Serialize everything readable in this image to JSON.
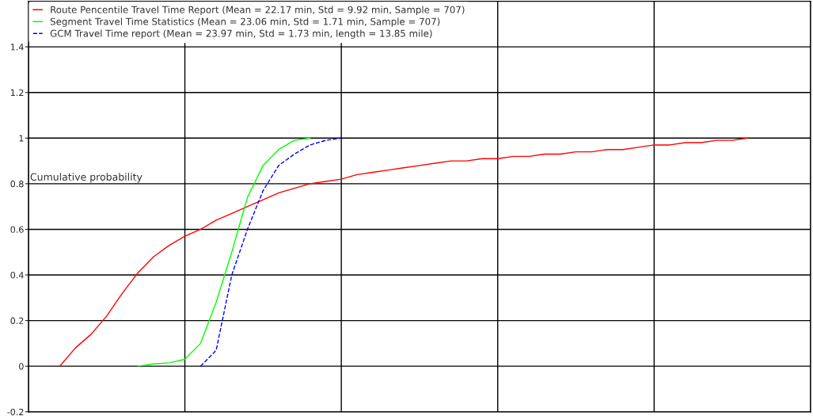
{
  "chart_data": {
    "type": "line",
    "ylabel": "Cumulative probability",
    "categories": [
      null,
      null,
      null,
      null,
      null,
      null,
      null,
      null,
      null,
      null,
      null,
      null,
      null,
      null,
      null,
      null,
      null,
      null,
      null,
      null,
      null,
      null,
      null,
      null,
      null,
      null,
      null,
      null,
      null,
      null,
      null,
      null,
      null,
      null,
      null,
      null,
      null,
      null,
      null,
      null,
      null,
      null,
      null,
      null,
      null,
      null,
      null,
      null,
      null,
      null,
      null
    ],
    "series": [
      {
        "name": "Route Pencentile Travel Time Report (Mean = 22.17 min, Std = 9.92 min, Sample = 707)",
        "color": "#ff0000",
        "line_style": "solid",
        "values": [
          null,
          null,
          0,
          0.08,
          0.14,
          0.22,
          0.32,
          0.41,
          0.48,
          0.53,
          0.57,
          0.6,
          0.64,
          0.67,
          0.7,
          0.73,
          0.76,
          0.78,
          0.8,
          0.81,
          0.82,
          0.84,
          0.85,
          0.86,
          0.87,
          0.88,
          0.89,
          0.9,
          0.9,
          0.91,
          0.91,
          0.92,
          0.92,
          0.93,
          0.93,
          0.94,
          0.94,
          0.95,
          0.95,
          0.96,
          0.97,
          0.97,
          0.98,
          0.98,
          0.99,
          0.99,
          1.0,
          null,
          null,
          null,
          null
        ]
      },
      {
        "name": "Segment Travel Time Statistics (Mean = 23.06 min, Std = 1.71 min, Sample = 707)",
        "color": "#00ff00",
        "line_style": "solid",
        "values": [
          null,
          null,
          null,
          null,
          null,
          null,
          null,
          0,
          0.01,
          0.015,
          0.03,
          0.1,
          0.28,
          0.5,
          0.74,
          0.88,
          0.95,
          0.99,
          1.0,
          null,
          null,
          null,
          null,
          null,
          null,
          null,
          null,
          null,
          null,
          null,
          null,
          null,
          null,
          null,
          null,
          null,
          null,
          null,
          null,
          null,
          null,
          null,
          null,
          null,
          null,
          null,
          null,
          null,
          null,
          null,
          null
        ]
      },
      {
        "name": "GCM Travel Time report (Mean = 23.97 min, Std = 1.73 min, length = 13.85 mile)",
        "color": "#0000ff",
        "line_style": "dashed",
        "values": [
          null,
          null,
          null,
          null,
          null,
          null,
          null,
          null,
          null,
          null,
          null,
          0,
          0.07,
          0.4,
          0.6,
          0.77,
          0.88,
          0.93,
          0.97,
          0.99,
          1.0,
          null,
          null,
          null,
          null,
          null,
          null,
          null,
          null,
          null,
          null,
          null,
          null,
          null,
          null,
          null,
          null,
          null,
          null,
          null,
          null,
          null,
          null,
          null,
          null,
          null,
          null,
          null,
          null,
          null,
          null
        ]
      }
    ],
    "ylim": [
      -0.2,
      1.6
    ],
    "yticks": [
      -0.2,
      0,
      0.2,
      0.4,
      0.6,
      0.8,
      1,
      1.2,
      1.4
    ],
    "tick_labels": "y",
    "grid": true,
    "legend": "top left"
  }
}
